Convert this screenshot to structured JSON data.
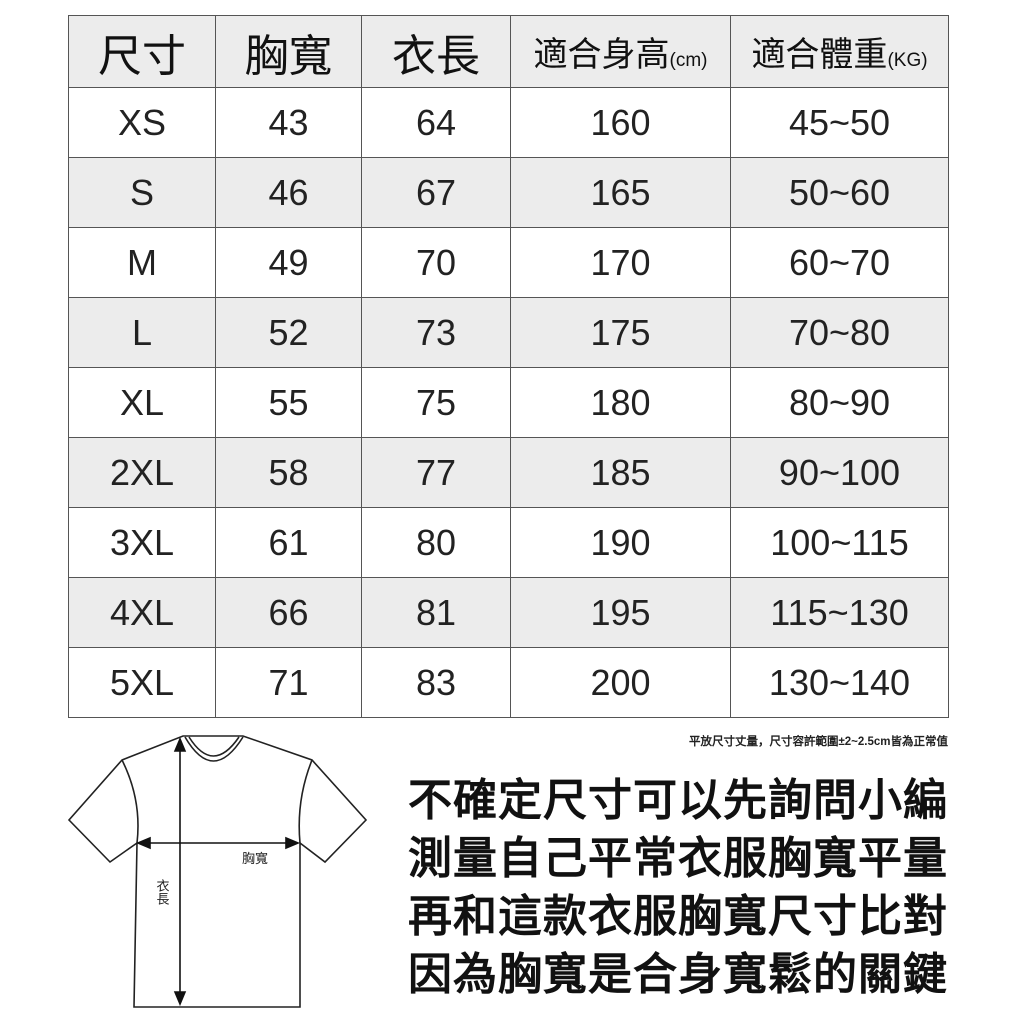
{
  "table": {
    "headers": [
      {
        "label": "尺寸",
        "unit": ""
      },
      {
        "label": "胸寬",
        "unit": ""
      },
      {
        "label": "衣長",
        "unit": ""
      },
      {
        "label": "適合身高",
        "unit": "(cm)"
      },
      {
        "label": "適合體重",
        "unit": "(KG)"
      }
    ],
    "rows": [
      [
        "XS",
        "43",
        "64",
        "160",
        "45~50"
      ],
      [
        "S",
        "46",
        "67",
        "165",
        "50~60"
      ],
      [
        "M",
        "49",
        "70",
        "170",
        "60~70"
      ],
      [
        "L",
        "52",
        "73",
        "175",
        "70~80"
      ],
      [
        "XL",
        "55",
        "75",
        "180",
        "80~90"
      ],
      [
        "2XL",
        "58",
        "77",
        "185",
        "90~100"
      ],
      [
        "3XL",
        "61",
        "80",
        "190",
        "100~115"
      ],
      [
        "4XL",
        "66",
        "81",
        "195",
        "115~130"
      ],
      [
        "5XL",
        "71",
        "83",
        "200",
        "130~140"
      ]
    ]
  },
  "note": "平放尺寸丈量，尺寸容許範圍±2~2.5cm皆為正常值",
  "diagram": {
    "chest_label": "胸寬",
    "length_label": "衣長"
  },
  "tips": [
    "不確定尺寸可以先詢問小編",
    "測量自己平常衣服胸寬平量",
    "再和這款衣服胸寬尺寸比對",
    "因為胸寬是合身寬鬆的關鍵"
  ]
}
